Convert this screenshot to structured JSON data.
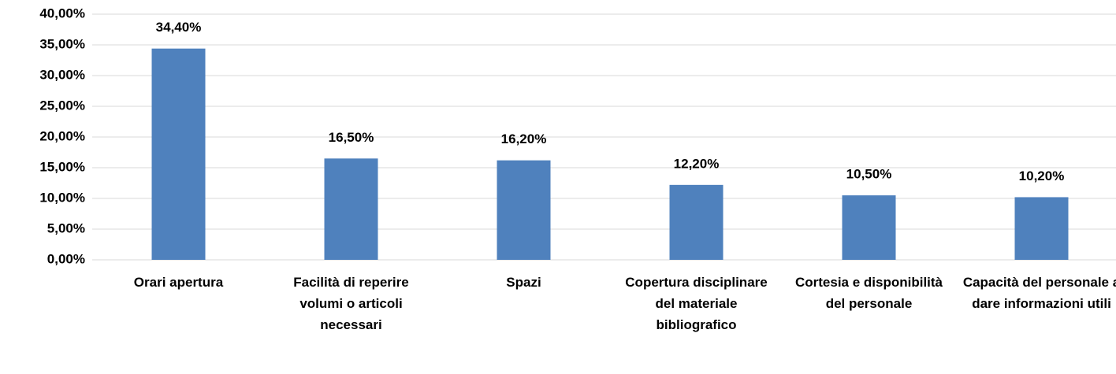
{
  "chart_data": {
    "type": "bar",
    "categories": [
      "Orari apertura",
      "Facilità di reperire volumi o articoli necessari",
      "Spazi",
      "Copertura disciplinare del materiale bibliografico",
      "Cortesia e disponibilità del personale",
      "Capacità del personale a dare informazioni utili"
    ],
    "values": [
      34.4,
      16.5,
      16.2,
      12.2,
      10.5,
      10.2
    ],
    "value_labels": [
      "34,40%",
      "16,50%",
      "16,20%",
      "12,20%",
      "10,50%",
      "10,20%"
    ],
    "color": "#4f81bd",
    "ylim": [
      0,
      40
    ],
    "yticks": [
      {
        "value": 0,
        "label": "0,00%"
      },
      {
        "value": 5,
        "label": "5,00%"
      },
      {
        "value": 10,
        "label": "10,00%"
      },
      {
        "value": 15,
        "label": "15,00%"
      },
      {
        "value": 20,
        "label": "20,00%"
      },
      {
        "value": 25,
        "label": "25,00%"
      },
      {
        "value": 30,
        "label": "30,00%"
      },
      {
        "value": 35,
        "label": "35,00%"
      },
      {
        "value": 40,
        "label": "40,00%"
      }
    ],
    "grid": true
  }
}
